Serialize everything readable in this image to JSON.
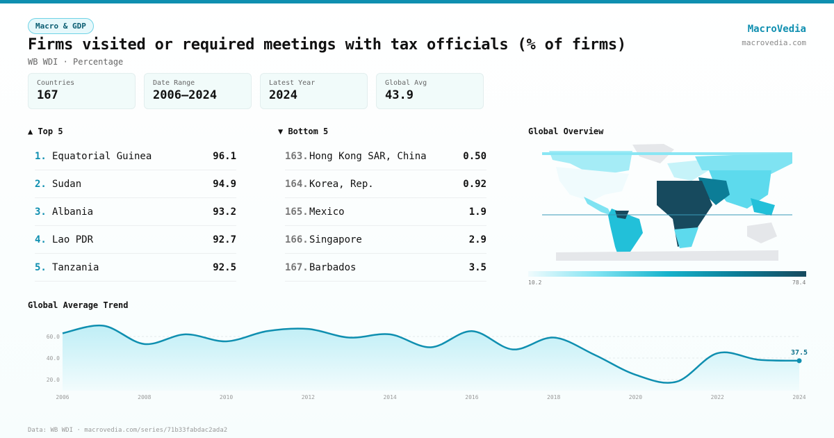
{
  "badge": "Macro & GDP",
  "title": "Firms visited or required meetings with tax officials (% of firms)",
  "subtitle": "WB WDI · Percentage",
  "brand": {
    "name": "MacroVedia",
    "url": "macrovedia.com"
  },
  "stats": [
    {
      "label": "Countries",
      "value": "167"
    },
    {
      "label": "Date Range",
      "value": "2006–2024"
    },
    {
      "label": "Latest Year",
      "value": "2024"
    },
    {
      "label": "Global Avg",
      "value": "43.9"
    }
  ],
  "top5": {
    "title": "▲ Top 5",
    "items": [
      {
        "rank": "1.",
        "name": "Equatorial Guinea",
        "value": "96.1"
      },
      {
        "rank": "2.",
        "name": "Sudan",
        "value": "94.9"
      },
      {
        "rank": "3.",
        "name": "Albania",
        "value": "93.2"
      },
      {
        "rank": "4.",
        "name": "Lao PDR",
        "value": "92.7"
      },
      {
        "rank": "5.",
        "name": "Tanzania",
        "value": "92.5"
      }
    ]
  },
  "bottom5": {
    "title": "▼ Bottom 5",
    "items": [
      {
        "rank": "163.",
        "name": "Hong Kong SAR, China",
        "value": "0.50"
      },
      {
        "rank": "164.",
        "name": "Korea, Rep.",
        "value": "0.92"
      },
      {
        "rank": "165.",
        "name": "Mexico",
        "value": "1.9"
      },
      {
        "rank": "166.",
        "name": "Singapore",
        "value": "2.9"
      },
      {
        "rank": "167.",
        "name": "Barbados",
        "value": "3.5"
      }
    ]
  },
  "map": {
    "title": "Global Overview",
    "legend_min": "10.2",
    "legend_max": "78.4",
    "colors": {
      "low": "#f0fbfd",
      "mid": "#17b3cc",
      "high": "#174a5e",
      "nodata": "#e5e7ea"
    }
  },
  "chart_data": {
    "type": "area",
    "title": "Global Average Trend",
    "x": [
      2006,
      2007,
      2008,
      2009,
      2010,
      2011,
      2012,
      2013,
      2014,
      2015,
      2016,
      2017,
      2018,
      2019,
      2020,
      2021,
      2022,
      2023,
      2024
    ],
    "values": [
      63,
      70,
      53,
      62,
      55.5,
      65,
      67,
      59,
      62,
      50,
      65,
      48,
      59,
      43,
      24.5,
      18,
      44.5,
      38.5,
      37.5
    ],
    "yticks": [
      "20.0",
      "40.0",
      "60.0"
    ],
    "xticks": [
      "2006",
      "2008",
      "2010",
      "2012",
      "2014",
      "2016",
      "2018",
      "2020",
      "2022",
      "2024"
    ],
    "last_label": "37.5",
    "color": "#0f8fb0",
    "grid": true
  },
  "footer": "Data: WB WDI · macrovedia.com/series/71b33fabdac2ada2"
}
